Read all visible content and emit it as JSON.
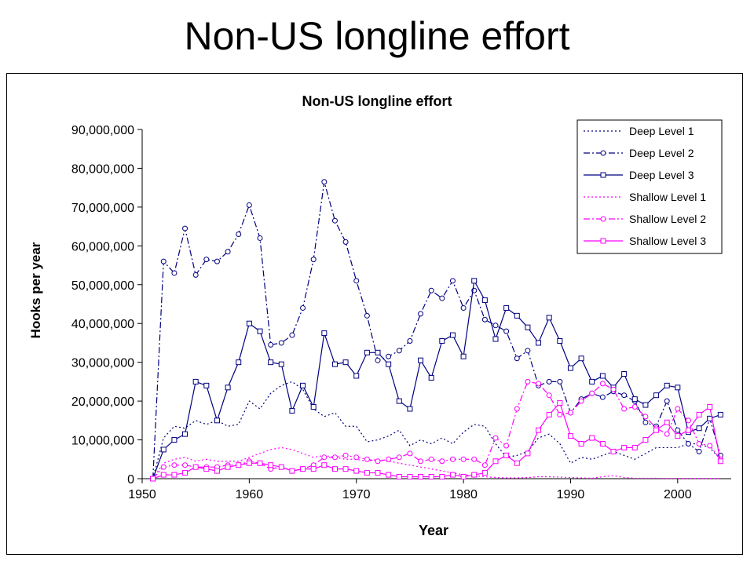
{
  "slide": {
    "title": "Non-US longline effort"
  },
  "chart_data": {
    "type": "line",
    "title": "Non-US longline effort",
    "xlabel": "Year",
    "ylabel": "Hooks per year",
    "xlim": [
      1950,
      2005
    ],
    "ylim": [
      0,
      90000000
    ],
    "x_ticks": [
      1950,
      1960,
      1970,
      1980,
      1990,
      2000
    ],
    "y_ticks": [
      0,
      10000000,
      20000000,
      30000000,
      40000000,
      50000000,
      60000000,
      70000000,
      80000000,
      90000000
    ],
    "y_tick_labels": [
      "0",
      "10,000,000",
      "20,000,000",
      "30,000,000",
      "40,000,000",
      "50,000,000",
      "60,000,000",
      "70,000,000",
      "80,000,000",
      "90,000,000"
    ],
    "x_tick_labels": [
      "1950",
      "1960",
      "1970",
      "1980",
      "1990",
      "2000"
    ],
    "legend_position": "top-right",
    "grid": false,
    "x": [
      1951,
      1952,
      1953,
      1954,
      1955,
      1956,
      1957,
      1958,
      1959,
      1960,
      1961,
      1962,
      1963,
      1964,
      1965,
      1966,
      1967,
      1968,
      1969,
      1970,
      1971,
      1972,
      1973,
      1974,
      1975,
      1976,
      1977,
      1978,
      1979,
      1980,
      1981,
      1982,
      1983,
      1984,
      1985,
      1986,
      1987,
      1988,
      1989,
      1990,
      1991,
      1992,
      1993,
      1994,
      1995,
      1996,
      1997,
      1998,
      1999,
      2000,
      2001,
      2002,
      2003,
      2004
    ],
    "series": [
      {
        "name": "Deep Level 1",
        "color": "#000080",
        "dash": "dot",
        "marker": "none",
        "values": [
          0,
          10500000,
          13500000,
          13000000,
          15000000,
          14000000,
          15000000,
          13500000,
          14000000,
          20000000,
          18000000,
          22000000,
          24000000,
          25000000,
          23000000,
          18000000,
          16000000,
          17000000,
          13500000,
          13500000,
          9500000,
          10000000,
          11000000,
          12500000,
          8500000,
          10000000,
          9000000,
          10500000,
          9000000,
          12000000,
          14000000,
          13500000,
          9000000,
          5500000,
          6000000,
          7000000,
          10500000,
          11500000,
          9000000,
          4000000,
          5500000,
          5000000,
          6000000,
          7000000,
          6000000,
          5000000,
          6500000,
          8000000,
          8000000,
          8000000,
          9000000,
          9000000,
          8000000,
          5000000
        ]
      },
      {
        "name": "Deep Level 2",
        "color": "#000080",
        "dash": "dashdot",
        "marker": "circle",
        "values": [
          0,
          56000000,
          53000000,
          64500000,
          52500000,
          56500000,
          56000000,
          58500000,
          63000000,
          70500000,
          62000000,
          34500000,
          35000000,
          37000000,
          44000000,
          56500000,
          76500000,
          66500000,
          61000000,
          51000000,
          42000000,
          30500000,
          31500000,
          33000000,
          35500000,
          42500000,
          48500000,
          46500000,
          51000000,
          44000000,
          48500000,
          41000000,
          39500000,
          38000000,
          31000000,
          33000000,
          24000000,
          25000000,
          25000000,
          17000000,
          20500000,
          22000000,
          21000000,
          22500000,
          21500000,
          20000000,
          14500000,
          13500000,
          20000000,
          12500000,
          9000000,
          7000000,
          15500000,
          6000000
        ]
      },
      {
        "name": "Deep Level 3",
        "color": "#000080",
        "dash": "solid",
        "marker": "square",
        "values": [
          0,
          7500000,
          10000000,
          11500000,
          25000000,
          24000000,
          15000000,
          23500000,
          30000000,
          40000000,
          38000000,
          30000000,
          29500000,
          17500000,
          24000000,
          18500000,
          37500000,
          29500000,
          30000000,
          26500000,
          32500000,
          32500000,
          29500000,
          20000000,
          18000000,
          30500000,
          26000000,
          35500000,
          37000000,
          31500000,
          51000000,
          46000000,
          36000000,
          44000000,
          42000000,
          39000000,
          35000000,
          41500000,
          35500000,
          28500000,
          31000000,
          25000000,
          26500000,
          23500000,
          27000000,
          20500000,
          19000000,
          21500000,
          24000000,
          23500000,
          12000000,
          13000000,
          15500000,
          16500000
        ]
      },
      {
        "name": "Shallow Level 1",
        "color": "#FF00FF",
        "dash": "dot",
        "marker": "none",
        "values": [
          0,
          4000000,
          5000000,
          5500000,
          4500000,
          5000000,
          4500000,
          4500000,
          4500000,
          5500000,
          6500000,
          7500000,
          8000000,
          7500000,
          6500000,
          5500000,
          6000000,
          5500000,
          5000000,
          5000000,
          4500000,
          5000000,
          4500000,
          4000000,
          3500000,
          3000000,
          2500000,
          2000000,
          1500000,
          1000000,
          800000,
          500000,
          300000,
          200000,
          200000,
          300000,
          500000,
          500000,
          400000,
          300000,
          200000,
          100000,
          500000,
          800000,
          300000,
          100000,
          100000,
          100000,
          50000,
          50000,
          50000,
          50000,
          50000,
          50000
        ]
      },
      {
        "name": "Shallow Level 2",
        "color": "#FF00FF",
        "dash": "dashdot",
        "marker": "circle",
        "values": [
          0,
          3000000,
          3500000,
          3500000,
          3000000,
          3000000,
          3000000,
          3500000,
          3500000,
          4500000,
          4000000,
          2500000,
          3000000,
          2000000,
          2500000,
          3500000,
          5500000,
          5500000,
          6000000,
          5500000,
          5000000,
          4500000,
          5000000,
          5500000,
          6500000,
          4500000,
          5000000,
          4500000,
          5000000,
          5000000,
          5000000,
          3500000,
          10500000,
          8500000,
          18000000,
          25000000,
          24500000,
          21500000,
          16500000,
          17000000,
          20000000,
          22000000,
          24500000,
          23000000,
          18000000,
          18500000,
          16000000,
          13000000,
          11500000,
          18000000,
          15000000,
          9000000,
          8500000,
          5000000
        ]
      },
      {
        "name": "Shallow Level 3",
        "color": "#FF00FF",
        "dash": "solid",
        "marker": "square",
        "values": [
          0,
          1000000,
          1000000,
          1500000,
          3000000,
          2500000,
          2000000,
          3000000,
          3500000,
          4000000,
          4000000,
          3500000,
          3000000,
          2000000,
          2500000,
          2500000,
          3500000,
          2500000,
          2500000,
          2000000,
          1500000,
          1500000,
          1000000,
          500000,
          500000,
          500000,
          500000,
          500000,
          1000000,
          500000,
          1000000,
          1500000,
          4500000,
          6000000,
          4000000,
          6500000,
          12500000,
          16500000,
          19500000,
          11000000,
          9000000,
          10500000,
          9000000,
          7000000,
          8000000,
          8000000,
          10000000,
          12500000,
          14500000,
          11000000,
          12500000,
          16500000,
          18500000,
          4500000
        ]
      }
    ]
  }
}
